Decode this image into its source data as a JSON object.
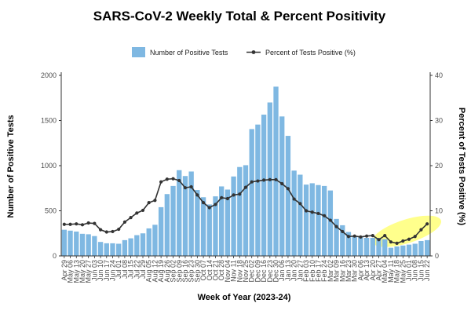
{
  "chart_data": {
    "type": "bar",
    "title": "SARS-CoV-2 Weekly Total & Percent Positivity",
    "xlabel": "Week of Year (2023-24)",
    "ylabel": "Number of Positive Tests",
    "ylabel_right": "Percent of Tests Positive (%)",
    "ylim": [
      0,
      2000
    ],
    "ylim_right": [
      0,
      40
    ],
    "yticks": [
      0,
      500,
      1000,
      1500,
      2000
    ],
    "yticks_right": [
      0,
      10,
      20,
      30,
      40
    ],
    "grid": false,
    "legend_position": "top",
    "categories": [
      "Apr 29",
      "May 06",
      "May 13",
      "May 20",
      "May 27",
      "Jun 03",
      "Jun 10",
      "Jun 17",
      "Jun 24",
      "Jul 01",
      "Jul 08",
      "Jul 15",
      "Jul 22",
      "Jul 29",
      "Aug 05",
      "Aug 12",
      "Aug 19",
      "Aug 26",
      "Sep 02",
      "Sep 09",
      "Sep 16",
      "Sep 23",
      "Sep 30",
      "Oct 07",
      "Oct 14",
      "Oct 21",
      "Oct 28",
      "Nov 04",
      "Nov 11",
      "Nov 18",
      "Nov 25",
      "Dec 02",
      "Dec 09",
      "Dec 16",
      "Dec 23",
      "Dec 30",
      "Jan 06",
      "Jan 13",
      "Jan 20",
      "Jan 27",
      "Feb 03",
      "Feb 10",
      "Feb 17",
      "Feb 24",
      "Mar 02",
      "Mar 09",
      "Mar 16",
      "Mar 23",
      "Mar 30",
      "Apr 06",
      "Apr 13",
      "Apr 20",
      "Apr 27",
      "May 04",
      "May 11",
      "May 18",
      "May 25",
      "Jun 01",
      "Jun 08",
      "Jun 15",
      "Jun 22"
    ],
    "tick_labels": [
      "Apr 29",
      "May 06",
      "May 13",
      "May 20",
      "May 27",
      "Jun 03",
      "Jun 10",
      "Jun 17",
      "Jun 24",
      "Jul 01",
      "Jul 08",
      "Jul 15",
      "Jul 22",
      "Jul 29",
      "Aug 05",
      "Aug 12",
      "Aug 19",
      "Aug 26",
      "Sep 02",
      "Sep 09",
      "Sep 16",
      "Sep 23",
      "Sep 30",
      "Oct 07",
      "Oct 14",
      "Oct 21",
      "Oct 28",
      "Nov 04",
      "Nov 11",
      "Nov 18",
      "Nov 25",
      "Dec 02",
      "Dec 09",
      "Dec 16",
      "Dec 23",
      "Dec 30",
      "Jan 06",
      "Jan 13",
      "Jan 20",
      "Jan 27",
      "Feb 03",
      "Feb 10",
      "Feb 17",
      "Feb 24",
      "Mar 02",
      "Mar 09",
      "Mar 16",
      "Mar 23",
      "Mar 30",
      "Apr 06",
      "Apr 13",
      "Apr 20",
      "Apr 27",
      "May 04",
      "May 11",
      "May 18",
      "May 25",
      "Jun 01",
      "Jun 08",
      "Jun 15",
      "Jun 22"
    ],
    "series": [
      {
        "name": "Number of Positive Tests",
        "type": "bar",
        "axis": "left",
        "color": "#7fb8e2",
        "values": [
          290,
          280,
          270,
          245,
          240,
          220,
          155,
          140,
          140,
          135,
          175,
          195,
          230,
          250,
          305,
          345,
          540,
          685,
          775,
          950,
          885,
          935,
          730,
          650,
          570,
          660,
          770,
          735,
          880,
          985,
          1005,
          1405,
          1455,
          1565,
          1700,
          1875,
          1545,
          1330,
          945,
          900,
          790,
          805,
          785,
          775,
          725,
          410,
          340,
          265,
          215,
          210,
          200,
          200,
          200,
          185,
          90,
          105,
          115,
          125,
          135,
          165,
          175
        ]
      },
      {
        "name": "Percent of Tests Positive (%)",
        "type": "line",
        "axis": "right",
        "color": "#333333",
        "values": [
          7.0,
          7.0,
          7.1,
          6.9,
          7.3,
          7.2,
          5.8,
          5.3,
          5.4,
          5.9,
          7.5,
          8.5,
          9.5,
          10.1,
          11.8,
          12.3,
          16.4,
          17.0,
          17.1,
          16.7,
          15.1,
          15.3,
          13.5,
          11.8,
          10.7,
          11.4,
          12.9,
          12.7,
          13.5,
          13.7,
          15.2,
          16.4,
          16.6,
          16.8,
          16.9,
          16.9,
          16.0,
          14.9,
          12.6,
          11.6,
          10.0,
          9.7,
          9.4,
          8.9,
          7.9,
          6.5,
          5.4,
          4.3,
          4.4,
          4.2,
          4.4,
          4.5,
          3.6,
          4.5,
          3.1,
          2.8,
          3.3,
          3.7,
          4.3,
          5.8,
          7.1
        ]
      }
    ],
    "highlight_color": "#ffff66"
  }
}
